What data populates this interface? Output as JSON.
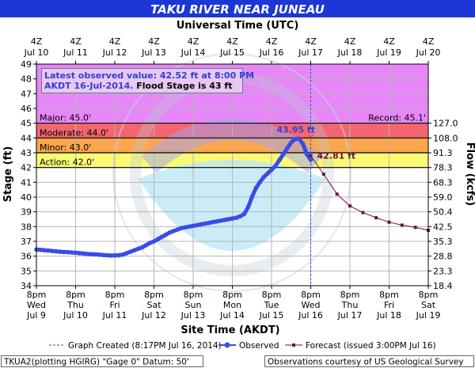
{
  "chart_data": {
    "type": "line",
    "title": "TAKU RIVER NEAR JUNEAU",
    "top_axis_label": "Universal Time (UTC)",
    "xlabel": "Site Time (AKDT)",
    "ylabel": "Stage (ft)",
    "y2label": "Flow (kcfs)",
    "ylim": [
      34,
      49
    ],
    "xlim": [
      "Jul 9 8pm",
      "Jul 19 8pm"
    ],
    "yticks": [
      34,
      35,
      36,
      37,
      38,
      39,
      40,
      41,
      42,
      43,
      44,
      45,
      46,
      47,
      48,
      49
    ],
    "y2ticks": [
      {
        "stage": 34,
        "label": "18.4"
      },
      {
        "stage": 35,
        "label": "23.3"
      },
      {
        "stage": 36,
        "label": "28.8"
      },
      {
        "stage": 37,
        "label": "35.3"
      },
      {
        "stage": 38,
        "label": "42.5"
      },
      {
        "stage": 39,
        "label": "50.4"
      },
      {
        "stage": 40,
        "label": "59.0"
      },
      {
        "stage": 41,
        "label": "68.3"
      },
      {
        "stage": 42,
        "label": "78.3"
      },
      {
        "stage": 43,
        "label": "91.3"
      },
      {
        "stage": 44,
        "label": "108.0"
      },
      {
        "stage": 45,
        "label": "127.0"
      }
    ],
    "top_ticks": [
      {
        "l1": "4Z",
        "l2": "Jul 10"
      },
      {
        "l1": "4Z",
        "l2": "Jul 11"
      },
      {
        "l1": "4Z",
        "l2": "Jul 12"
      },
      {
        "l1": "4Z",
        "l2": "Jul 13"
      },
      {
        "l1": "4Z",
        "l2": "Jul 14"
      },
      {
        "l1": "4Z",
        "l2": "Jul 15"
      },
      {
        "l1": "4Z",
        "l2": "Jul 16"
      },
      {
        "l1": "4Z",
        "l2": "Jul 17"
      },
      {
        "l1": "4Z",
        "l2": "Jul 18"
      },
      {
        "l1": "4Z",
        "l2": "Jul 19"
      },
      {
        "l1": "4Z",
        "l2": "Jul 20"
      }
    ],
    "bottom_ticks": [
      {
        "l1": "8pm",
        "l2": "Wed",
        "l3": "Jul 9"
      },
      {
        "l1": "8pm",
        "l2": "Thu",
        "l3": "Jul 10"
      },
      {
        "l1": "8pm",
        "l2": "Fri",
        "l3": "Jul 11"
      },
      {
        "l1": "8pm",
        "l2": "Sat",
        "l3": "Jul 12"
      },
      {
        "l1": "8pm",
        "l2": "Sun",
        "l3": "Jul 13"
      },
      {
        "l1": "8pm",
        "l2": "Mon",
        "l3": "Jul 14"
      },
      {
        "l1": "8pm",
        "l2": "Tue",
        "l3": "Jul 15"
      },
      {
        "l1": "8pm",
        "l2": "Wed",
        "l3": "Jul 16"
      },
      {
        "l1": "8pm",
        "l2": "Thu",
        "l3": "Jul 17"
      },
      {
        "l1": "8pm",
        "l2": "Fri",
        "l3": "Jul 18"
      },
      {
        "l1": "8pm",
        "l2": "Sat",
        "l3": "Jul 19"
      }
    ],
    "flood_categories": [
      {
        "name": "Major",
        "label": "Major: 45.0'",
        "from": 45,
        "to": 49,
        "color": "#e787f7"
      },
      {
        "name": "Moderate",
        "label": "Moderate: 44.0'",
        "from": 44,
        "to": 45,
        "color": "#f4666f"
      },
      {
        "name": "Minor",
        "label": "Minor: 43.0'",
        "from": 43,
        "to": 44,
        "color": "#fca64e"
      },
      {
        "name": "Action",
        "label": "Action: 42.0'",
        "from": 42,
        "to": 43,
        "color": "#f9f976"
      }
    ],
    "record_label": "Record: 45.1'",
    "info_box": {
      "line1": "Latest observed value: 42.52 ft at 8:00 PM",
      "line2a": "AKDT 16-Jul-2014.",
      "line2b": "Flood Stage is 43 ft"
    },
    "peak_label": "43.95 ft",
    "forecast_label": "42.81 ft",
    "graph_created_days": 7.0,
    "observed": {
      "name": "Observed",
      "color": "#3b4be6",
      "days": [
        0,
        0.1,
        0.2,
        0.3,
        0.4,
        0.5,
        0.6,
        0.7,
        0.8,
        0.9,
        1.0,
        1.1,
        1.2,
        1.3,
        1.4,
        1.5,
        1.6,
        1.7,
        1.8,
        1.9,
        2.0,
        2.1,
        2.2,
        2.3,
        2.4,
        2.5,
        2.6,
        2.7,
        2.8,
        2.9,
        3.0,
        3.1,
        3.2,
        3.3,
        3.4,
        3.5,
        3.6,
        3.7,
        3.8,
        3.9,
        4.0,
        4.1,
        4.2,
        4.3,
        4.4,
        4.5,
        4.6,
        4.7,
        4.8,
        4.9,
        5.0,
        5.1,
        5.2,
        5.3,
        5.4,
        5.5,
        5.6,
        5.7,
        5.8,
        5.9,
        6.0,
        6.1,
        6.2,
        6.3,
        6.4,
        6.5,
        6.6,
        6.7,
        6.8,
        6.9,
        7.0
      ],
      "stage": [
        36.45,
        36.43,
        36.4,
        36.38,
        36.35,
        36.33,
        36.3,
        36.28,
        36.27,
        36.25,
        36.23,
        36.2,
        36.18,
        36.15,
        36.13,
        36.12,
        36.1,
        36.08,
        36.06,
        36.04,
        36.05,
        36.06,
        36.1,
        36.2,
        36.3,
        36.4,
        36.5,
        36.6,
        36.75,
        36.9,
        37.0,
        37.15,
        37.3,
        37.45,
        37.6,
        37.7,
        37.8,
        37.9,
        37.95,
        38.0,
        38.05,
        38.1,
        38.15,
        38.2,
        38.25,
        38.3,
        38.35,
        38.4,
        38.45,
        38.5,
        38.55,
        38.6,
        38.7,
        38.85,
        39.3,
        40.0,
        40.6,
        41.0,
        41.35,
        41.6,
        41.85,
        42.1,
        42.5,
        42.9,
        43.3,
        43.7,
        43.92,
        43.95,
        43.6,
        42.9,
        42.52
      ]
    },
    "forecast": {
      "name": "Forecast (issued 3:00PM Jul 16)",
      "color": "#6b0f45",
      "days": [
        7.0,
        7.33,
        7.67,
        8.0,
        8.33,
        8.67,
        9.0,
        9.33,
        9.67,
        10.0
      ],
      "stage": [
        42.81,
        41.55,
        40.2,
        39.4,
        38.95,
        38.6,
        38.3,
        38.1,
        37.95,
        37.75
      ]
    },
    "legend": {
      "graph_created": "Graph Created (8:17PM Jul 16, 2014)",
      "observed": "Observed",
      "forecast": "Forecast (issued 3:00PM Jul 16)"
    },
    "footer_left": "TKUA2(plotting HGIRG) \"Gage 0\" Datum:  50'",
    "footer_right": "Observations courtesy of US Geological Survey",
    "watermark": "NATIONAL OCEANIC AND ATMOSPHERIC ADMINISTRATION · U.S. DEPARTMENT OF COMMERCE · NOAA"
  }
}
